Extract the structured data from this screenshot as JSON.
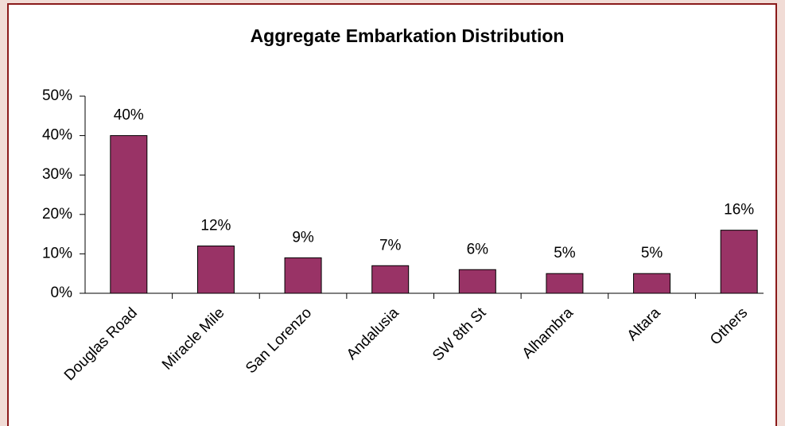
{
  "chart_data": {
    "type": "bar",
    "title": "Aggregate Embarkation Distribution",
    "categories": [
      "Douglas Road",
      "Miracle Mile",
      "San Lorenzo",
      "Andalusia",
      "SW 8th St",
      "Alhambra",
      "Altara",
      "Others"
    ],
    "values": [
      40,
      12,
      9,
      7,
      6,
      5,
      5,
      16
    ],
    "value_labels": [
      "40%",
      "12%",
      "9%",
      "7%",
      "6%",
      "5%",
      "5%",
      "16%"
    ],
    "color": "#993366",
    "ylim": [
      0,
      50
    ],
    "yticks": [
      {
        "value": 0,
        "label": "0%"
      },
      {
        "value": 10,
        "label": "10%"
      },
      {
        "value": 20,
        "label": "20%"
      },
      {
        "value": 30,
        "label": "30%"
      },
      {
        "value": 40,
        "label": "40%"
      },
      {
        "value": 50,
        "label": "50%"
      }
    ],
    "grid": false
  }
}
